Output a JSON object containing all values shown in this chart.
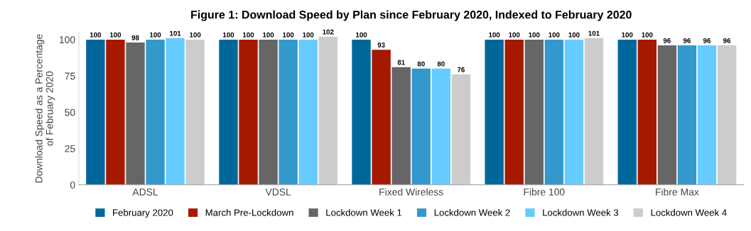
{
  "chart_data": {
    "type": "bar",
    "title": "Figure 1: Download Speed by Plan since February 2020, Indexed to February 2020",
    "ylabel": "Download Speed as a Percentage\nof February 2020",
    "categories": [
      "ADSL",
      "VDSL",
      "Fixed Wireless",
      "Fibre 100",
      "Fibre Max"
    ],
    "series": [
      {
        "name": "February 2020",
        "color": "#00679a",
        "values": [
          100,
          100,
          100,
          100,
          100
        ]
      },
      {
        "name": "March Pre-Lockdown",
        "color": "#a51900",
        "values": [
          100,
          100,
          93,
          100,
          100
        ]
      },
      {
        "name": "Lockdown Week 1",
        "color": "#666666",
        "values": [
          98,
          100,
          81,
          100,
          96
        ]
      },
      {
        "name": "Lockdown Week 2",
        "color": "#3399cc",
        "values": [
          100,
          100,
          80,
          100,
          96
        ]
      },
      {
        "name": "Lockdown Week 3",
        "color": "#66ccff",
        "values": [
          101,
          100,
          80,
          100,
          96
        ]
      },
      {
        "name": "Lockdown Week 4",
        "color": "#cccccc",
        "values": [
          100,
          102,
          76,
          101,
          96
        ]
      }
    ],
    "ylim": [
      0,
      105
    ],
    "yticks": [
      0,
      25,
      50,
      75,
      100
    ],
    "grid": false,
    "legend": "bottom",
    "data_labels": true
  }
}
